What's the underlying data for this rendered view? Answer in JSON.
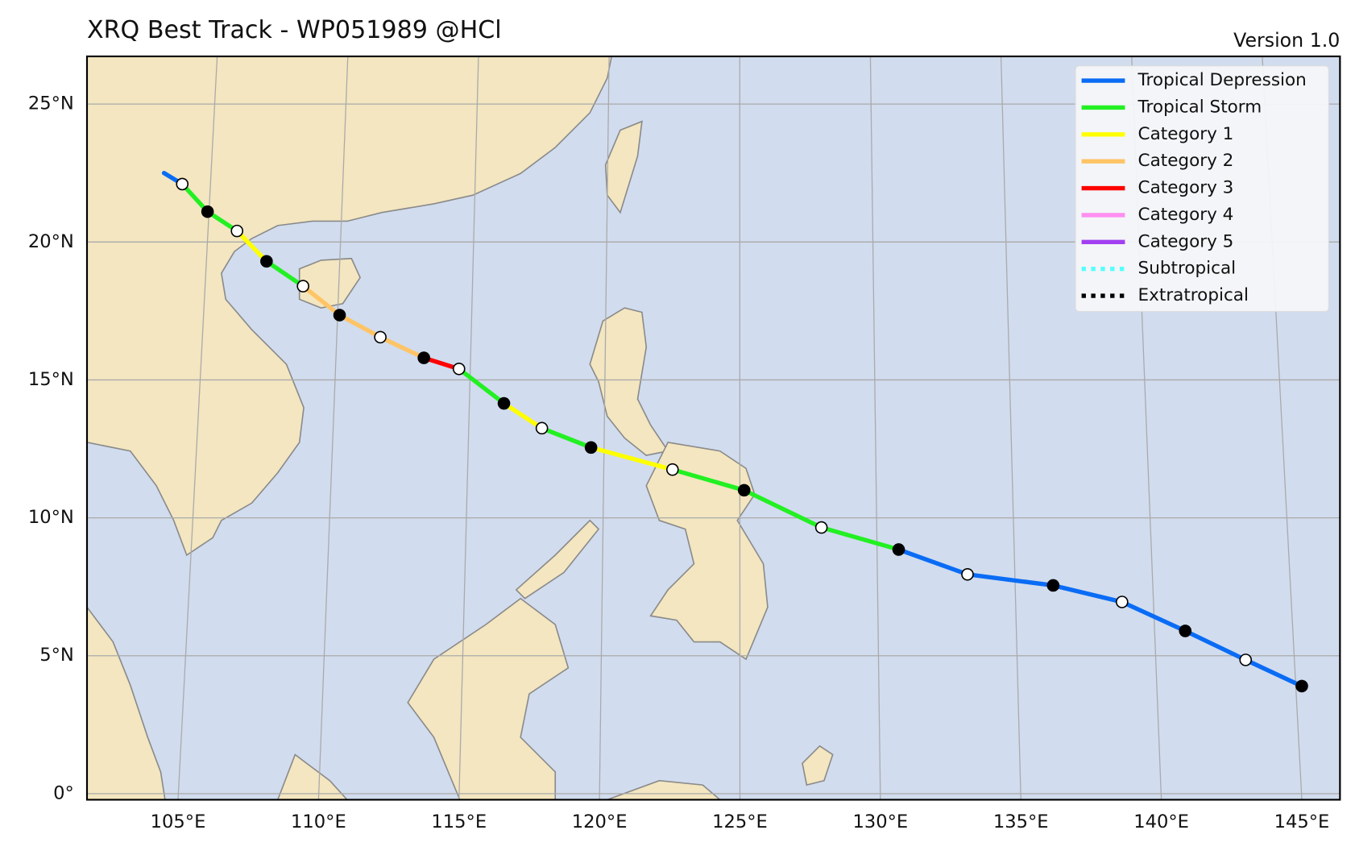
{
  "title": "XRQ Best Track - WP051989  @HCl",
  "version": "Version 1.0",
  "lon_ticks": [
    {
      "value": 105,
      "label": "105°E"
    },
    {
      "value": 110,
      "label": "110°E"
    },
    {
      "value": 115,
      "label": "115°E"
    },
    {
      "value": 120,
      "label": "120°E"
    },
    {
      "value": 125,
      "label": "125°E"
    },
    {
      "value": 130,
      "label": "130°E"
    },
    {
      "value": 135,
      "label": "135°E"
    },
    {
      "value": 140,
      "label": "140°E"
    },
    {
      "value": 145,
      "label": "145°E"
    }
  ],
  "lat_ticks": [
    {
      "value": 0,
      "label": "0°"
    },
    {
      "value": 5,
      "label": "5°N"
    },
    {
      "value": 10,
      "label": "10°N"
    },
    {
      "value": 15,
      "label": "15°N"
    },
    {
      "value": 20,
      "label": "20°N"
    },
    {
      "value": 25,
      "label": "25°N"
    }
  ],
  "legend": [
    {
      "name": "Tropical Depression",
      "color": "#0a6cf5",
      "style": "solid"
    },
    {
      "name": "Tropical Storm",
      "color": "#22f022",
      "style": "solid"
    },
    {
      "name": "Category 1",
      "color": "#ffff00",
      "style": "solid"
    },
    {
      "name": "Category 2",
      "color": "#ffc466",
      "style": "solid"
    },
    {
      "name": "Category 3",
      "color": "#ff0000",
      "style": "solid"
    },
    {
      "name": "Category 4",
      "color": "#ff8ff0",
      "style": "solid"
    },
    {
      "name": "Category 5",
      "color": "#a23ff0",
      "style": "solid"
    },
    {
      "name": "Subtropical",
      "color": "#55ffff",
      "style": "dotted"
    },
    {
      "name": "Extratropical",
      "color": "#000000",
      "style": "dotted"
    }
  ],
  "track": {
    "points": [
      {
        "lon": 145.0,
        "lat": 3.9,
        "cat": 0,
        "marker": "filled"
      },
      {
        "lon": 143.0,
        "lat": 4.85,
        "cat": 0,
        "marker": "open"
      },
      {
        "lon": 140.85,
        "lat": 5.9,
        "cat": 0,
        "marker": "filled"
      },
      {
        "lon": 138.6,
        "lat": 6.95,
        "cat": 0,
        "marker": "open"
      },
      {
        "lon": 136.15,
        "lat": 7.55,
        "cat": 0,
        "marker": "filled"
      },
      {
        "lon": 133.1,
        "lat": 7.95,
        "cat": 0,
        "marker": "open"
      },
      {
        "lon": 130.65,
        "lat": 8.85,
        "cat": 0,
        "marker": "filled"
      },
      {
        "lon": 127.9,
        "lat": 9.65,
        "cat": 1,
        "marker": "open"
      },
      {
        "lon": 125.15,
        "lat": 11.0,
        "cat": 1,
        "marker": "filled"
      },
      {
        "lon": 122.6,
        "lat": 11.75,
        "cat": 1,
        "marker": "open"
      },
      {
        "lon": 119.7,
        "lat": 12.55,
        "cat": 2,
        "marker": "filled"
      },
      {
        "lon": 117.95,
        "lat": 13.25,
        "cat": 1,
        "marker": "open"
      },
      {
        "lon": 116.6,
        "lat": 14.15,
        "cat": 2,
        "marker": "filled"
      },
      {
        "lon": 115.0,
        "lat": 15.4,
        "cat": 1,
        "marker": "open"
      },
      {
        "lon": 113.75,
        "lat": 15.8,
        "cat": 4,
        "marker": "filled"
      },
      {
        "lon": 112.2,
        "lat": 16.55,
        "cat": 3,
        "marker": "open"
      },
      {
        "lon": 110.75,
        "lat": 17.35,
        "cat": 3,
        "marker": "filled"
      },
      {
        "lon": 109.45,
        "lat": 18.4,
        "cat": 3,
        "marker": "open"
      },
      {
        "lon": 108.15,
        "lat": 19.3,
        "cat": 1,
        "marker": "filled"
      },
      {
        "lon": 107.1,
        "lat": 20.4,
        "cat": 2,
        "marker": "open"
      },
      {
        "lon": 106.05,
        "lat": 21.1,
        "cat": 1,
        "marker": "filled"
      },
      {
        "lon": 105.15,
        "lat": 22.1,
        "cat": 1,
        "marker": "open"
      },
      {
        "lon": 104.5,
        "lat": 22.5,
        "cat": 0,
        "marker": "none"
      }
    ]
  }
}
